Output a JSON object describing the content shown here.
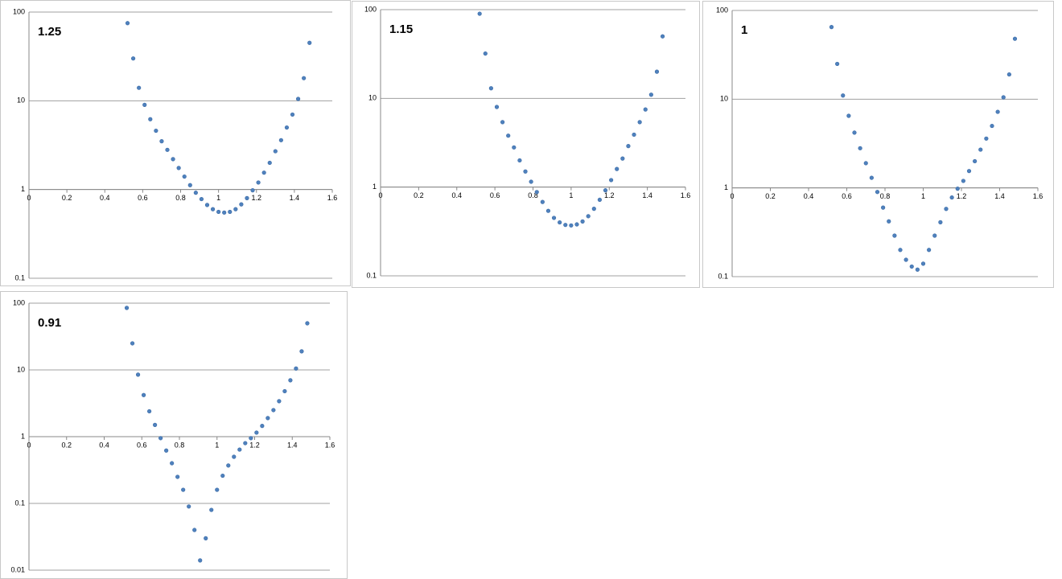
{
  "chart_data": [
    {
      "type": "scatter",
      "annotation": "1.25",
      "log_y": true,
      "grid": true,
      "xaxis_at": 1,
      "x": [
        0.52,
        0.55,
        0.58,
        0.61,
        0.64,
        0.67,
        0.7,
        0.73,
        0.76,
        0.79,
        0.82,
        0.85,
        0.88,
        0.91,
        0.94,
        0.97,
        1.0,
        1.03,
        1.06,
        1.09,
        1.12,
        1.15,
        1.18,
        1.21,
        1.24,
        1.27,
        1.3,
        1.33,
        1.36,
        1.39,
        1.42,
        1.45,
        1.48
      ],
      "series": [
        {
          "color": "#4f81bd",
          "values": [
            75,
            30,
            14,
            9,
            6.2,
            4.6,
            3.5,
            2.8,
            2.2,
            1.75,
            1.4,
            1.12,
            0.92,
            0.78,
            0.67,
            0.6,
            0.56,
            0.55,
            0.56,
            0.6,
            0.68,
            0.8,
            0.98,
            1.2,
            1.55,
            2.0,
            2.7,
            3.6,
            5,
            7,
            10.5,
            18,
            45
          ]
        }
      ],
      "xlim": [
        0,
        1.6
      ],
      "xticks": [
        0,
        0.2,
        0.4,
        0.6,
        0.8,
        1,
        1.2,
        1.4,
        1.6
      ],
      "ylim": [
        0.1,
        100
      ],
      "yticks": [
        100,
        10,
        1,
        0.1
      ]
    },
    {
      "type": "scatter",
      "annotation": "1.15",
      "log_y": true,
      "grid": true,
      "xaxis_at": 1,
      "x": [
        0.52,
        0.55,
        0.58,
        0.61,
        0.64,
        0.67,
        0.7,
        0.73,
        0.76,
        0.79,
        0.82,
        0.85,
        0.88,
        0.91,
        0.94,
        0.97,
        1.0,
        1.03,
        1.06,
        1.09,
        1.12,
        1.15,
        1.18,
        1.21,
        1.24,
        1.27,
        1.3,
        1.33,
        1.36,
        1.39,
        1.42,
        1.45,
        1.48
      ],
      "series": [
        {
          "color": "#4f81bd",
          "values": [
            90,
            32,
            13,
            8,
            5.4,
            3.8,
            2.8,
            2.0,
            1.5,
            1.15,
            0.88,
            0.68,
            0.54,
            0.45,
            0.4,
            0.375,
            0.37,
            0.38,
            0.41,
            0.47,
            0.57,
            0.72,
            0.92,
            1.2,
            1.6,
            2.1,
            2.9,
            3.9,
            5.4,
            7.5,
            11,
            20,
            50
          ]
        }
      ],
      "xlim": [
        0,
        1.6
      ],
      "xticks": [
        0,
        0.2,
        0.4,
        0.6,
        0.8,
        1,
        1.2,
        1.4,
        1.6
      ],
      "ylim": [
        0.1,
        100
      ],
      "yticks": [
        100,
        10,
        1,
        0.1
      ]
    },
    {
      "type": "scatter",
      "annotation": "1",
      "log_y": true,
      "grid": true,
      "xaxis_at": 1,
      "x": [
        0.52,
        0.55,
        0.58,
        0.61,
        0.64,
        0.67,
        0.7,
        0.73,
        0.76,
        0.79,
        0.82,
        0.85,
        0.88,
        0.91,
        0.94,
        0.97,
        1.0,
        1.03,
        1.06,
        1.09,
        1.12,
        1.15,
        1.18,
        1.21,
        1.24,
        1.27,
        1.3,
        1.33,
        1.36,
        1.39,
        1.42,
        1.45,
        1.48
      ],
      "series": [
        {
          "color": "#4f81bd",
          "values": [
            65,
            25,
            11,
            6.5,
            4.2,
            2.8,
            1.9,
            1.3,
            0.9,
            0.6,
            0.42,
            0.29,
            0.2,
            0.155,
            0.13,
            0.12,
            0.14,
            0.2,
            0.29,
            0.41,
            0.58,
            0.78,
            0.98,
            1.2,
            1.55,
            2.0,
            2.7,
            3.6,
            5,
            7.2,
            10.5,
            19,
            48
          ]
        }
      ],
      "xlim": [
        0,
        1.6
      ],
      "xticks": [
        0,
        0.2,
        0.4,
        0.6,
        0.8,
        1,
        1.2,
        1.4,
        1.6
      ],
      "ylim": [
        0.1,
        100
      ],
      "yticks": [
        100,
        10,
        1,
        0.1
      ]
    },
    {
      "type": "scatter",
      "annotation": "0.91",
      "log_y": true,
      "grid": true,
      "xaxis_at": 1,
      "x": [
        0.52,
        0.55,
        0.58,
        0.61,
        0.64,
        0.67,
        0.7,
        0.73,
        0.76,
        0.79,
        0.82,
        0.85,
        0.88,
        0.91,
        0.94,
        0.97,
        1.0,
        1.03,
        1.06,
        1.09,
        1.12,
        1.15,
        1.18,
        1.21,
        1.24,
        1.27,
        1.3,
        1.33,
        1.36,
        1.39,
        1.42,
        1.45,
        1.48
      ],
      "series": [
        {
          "color": "#4f81bd",
          "values": [
            85,
            25,
            8.5,
            4.2,
            2.4,
            1.5,
            0.95,
            0.62,
            0.4,
            0.25,
            0.16,
            0.09,
            0.04,
            0.014,
            0.03,
            0.08,
            0.16,
            0.26,
            0.37,
            0.5,
            0.64,
            0.8,
            0.95,
            1.15,
            1.45,
            1.9,
            2.5,
            3.4,
            4.8,
            7,
            10.5,
            19,
            50
          ]
        }
      ],
      "xlim": [
        0,
        1.6
      ],
      "xticks": [
        0,
        0.2,
        0.4,
        0.6,
        0.8,
        1,
        1.2,
        1.4,
        1.6
      ],
      "ylim": [
        0.01,
        100
      ],
      "yticks": [
        100,
        10,
        1,
        0.1,
        0.01
      ]
    }
  ]
}
